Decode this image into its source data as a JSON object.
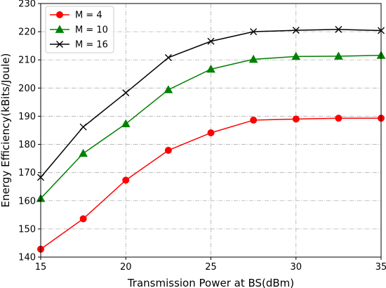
{
  "chart_data": {
    "type": "line",
    "xlabel": "Transmission Power at BS(dBm)",
    "ylabel": "Energy Efficiency(kBits/Joule)",
    "xlim": [
      15,
      35
    ],
    "ylim": [
      140,
      230
    ],
    "xticks": [
      15,
      20,
      25,
      30,
      35
    ],
    "yticks": [
      140,
      150,
      160,
      170,
      180,
      190,
      200,
      210,
      220,
      230
    ],
    "grid": true,
    "legend_position": "top-left",
    "x": [
      15,
      17.5,
      20,
      22.5,
      25,
      27.5,
      30,
      32.5,
      35
    ],
    "series": [
      {
        "name": "M = 4",
        "color": "#ff0000",
        "marker": "circle",
        "values": [
          142.8,
          153.6,
          167.3,
          177.9,
          184.1,
          188.6,
          189.0,
          189.3,
          189.3
        ]
      },
      {
        "name": "M = 10",
        "color": "#008000",
        "marker": "triangle",
        "values": [
          160.8,
          176.8,
          187.3,
          199.4,
          206.7,
          210.2,
          211.2,
          211.3,
          211.6
        ]
      },
      {
        "name": "M = 16",
        "color": "#000000",
        "marker": "x",
        "values": [
          168.3,
          186.2,
          198.3,
          210.8,
          216.6,
          220.0,
          220.5,
          220.8,
          220.4
        ]
      }
    ]
  }
}
